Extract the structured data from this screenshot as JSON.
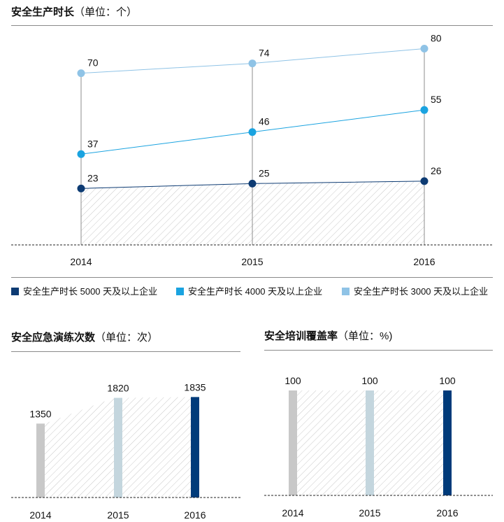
{
  "sections": {
    "line_chart": {
      "title": "安全生产时长",
      "unit": "（单位：个）"
    },
    "drills": {
      "title": "安全应急演练次数",
      "unit": "（单位：次）"
    },
    "training": {
      "title": "安全培训覆盖率",
      "unit": "（单位：%)"
    }
  },
  "chart_data": [
    {
      "type": "line",
      "title": "安全生产时长（单位：个）",
      "categories": [
        "2014",
        "2015",
        "2016"
      ],
      "ylim": [
        0,
        85
      ],
      "legend": "bottom",
      "series": [
        {
          "name": "安全生产时长 5000 天及以上企业",
          "values": [
            23,
            25,
            26
          ],
          "color": "#0d3b73",
          "area": true
        },
        {
          "name": "安全生产时长 4000 天及以上企业",
          "values": [
            37,
            46,
            55
          ],
          "color": "#1aa3e0"
        },
        {
          "name": "安全生产时长 3000 天及以上企业",
          "values": [
            70,
            74,
            80
          ],
          "color": "#8fc3e6"
        }
      ]
    },
    {
      "type": "bar",
      "title": "安全应急演练次数（单位：次）",
      "categories": [
        "2014",
        "2015",
        "2016"
      ],
      "values": [
        1350,
        1820,
        1835
      ],
      "colors": [
        "#c8c8c8",
        "#c4d6de",
        "#003b7a"
      ],
      "ylim": [
        0,
        2300
      ]
    },
    {
      "type": "bar",
      "title": "安全培训覆盖率（单位：%)",
      "categories": [
        "2014",
        "2015",
        "2016"
      ],
      "values": [
        100,
        100,
        100
      ],
      "colors": [
        "#c8c8c8",
        "#c4d6de",
        "#003b7a"
      ],
      "ylim": [
        0,
        100
      ]
    }
  ]
}
